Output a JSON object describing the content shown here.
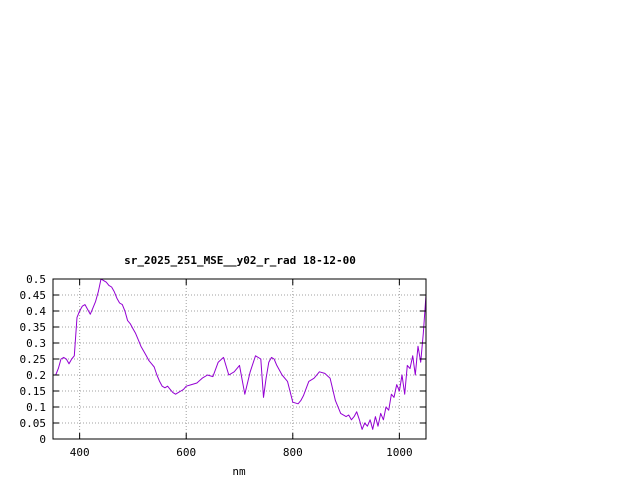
{
  "chart_data": {
    "type": "line",
    "title": "sr_2025_251_MSE__y02_r_rad 18-12-00",
    "xlabel": "nm",
    "ylabel": "",
    "xlim": [
      350,
      1050
    ],
    "ylim": [
      0,
      0.5
    ],
    "x_ticks": [
      400,
      600,
      800,
      1000
    ],
    "x_tick_labels": [
      "400",
      "600",
      "800",
      "1000"
    ],
    "y_ticks": [
      0,
      0.05,
      0.1,
      0.15,
      0.2,
      0.25,
      0.3,
      0.35,
      0.4,
      0.45,
      0.5
    ],
    "y_tick_labels": [
      "0",
      "0.05",
      "0.1",
      "0.15",
      "0.2",
      "0.25",
      "0.3",
      "0.35",
      "0.4",
      "0.45",
      "0.5"
    ],
    "grid": true,
    "line_color": "#9400d3",
    "series": [
      {
        "x": [
          350,
          355,
          360,
          365,
          370,
          375,
          380,
          385,
          390,
          395,
          400,
          405,
          410,
          415,
          420,
          425,
          430,
          435,
          440,
          445,
          450,
          455,
          460,
          465,
          470,
          475,
          480,
          485,
          490,
          495,
          500,
          505,
          510,
          515,
          520,
          525,
          530,
          535,
          540,
          545,
          550,
          555,
          560,
          565,
          570,
          575,
          580,
          585,
          590,
          595,
          600,
          610,
          620,
          630,
          640,
          650,
          660,
          670,
          680,
          690,
          700,
          710,
          720,
          730,
          740,
          745,
          750,
          755,
          760,
          765,
          770,
          780,
          790,
          800,
          810,
          815,
          820,
          830,
          840,
          850,
          860,
          870,
          880,
          890,
          900,
          905,
          910,
          915,
          920,
          925,
          930,
          935,
          940,
          945,
          950,
          955,
          960,
          965,
          970,
          975,
          980,
          985,
          990,
          995,
          1000,
          1005,
          1010,
          1015,
          1020,
          1025,
          1030,
          1035,
          1040,
          1045,
          1050
        ],
        "y": [
          0.2,
          0.2,
          0.22,
          0.25,
          0.255,
          0.25,
          0.235,
          0.25,
          0.26,
          0.38,
          0.4,
          0.415,
          0.42,
          0.405,
          0.39,
          0.41,
          0.43,
          0.46,
          0.5,
          0.495,
          0.49,
          0.48,
          0.475,
          0.46,
          0.44,
          0.425,
          0.42,
          0.4,
          0.37,
          0.36,
          0.345,
          0.33,
          0.31,
          0.29,
          0.275,
          0.26,
          0.245,
          0.235,
          0.225,
          0.2,
          0.18,
          0.165,
          0.16,
          0.165,
          0.155,
          0.145,
          0.14,
          0.145,
          0.15,
          0.155,
          0.165,
          0.17,
          0.175,
          0.19,
          0.2,
          0.195,
          0.24,
          0.255,
          0.2,
          0.21,
          0.23,
          0.14,
          0.21,
          0.26,
          0.25,
          0.13,
          0.19,
          0.24,
          0.255,
          0.25,
          0.23,
          0.2,
          0.18,
          0.115,
          0.11,
          0.12,
          0.135,
          0.18,
          0.19,
          0.21,
          0.205,
          0.19,
          0.12,
          0.08,
          0.07,
          0.075,
          0.06,
          0.07,
          0.085,
          0.06,
          0.03,
          0.05,
          0.04,
          0.06,
          0.03,
          0.07,
          0.04,
          0.08,
          0.06,
          0.1,
          0.09,
          0.14,
          0.13,
          0.17,
          0.15,
          0.2,
          0.14,
          0.23,
          0.22,
          0.26,
          0.2,
          0.29,
          0.24,
          0.33,
          0.45
        ]
      }
    ]
  }
}
